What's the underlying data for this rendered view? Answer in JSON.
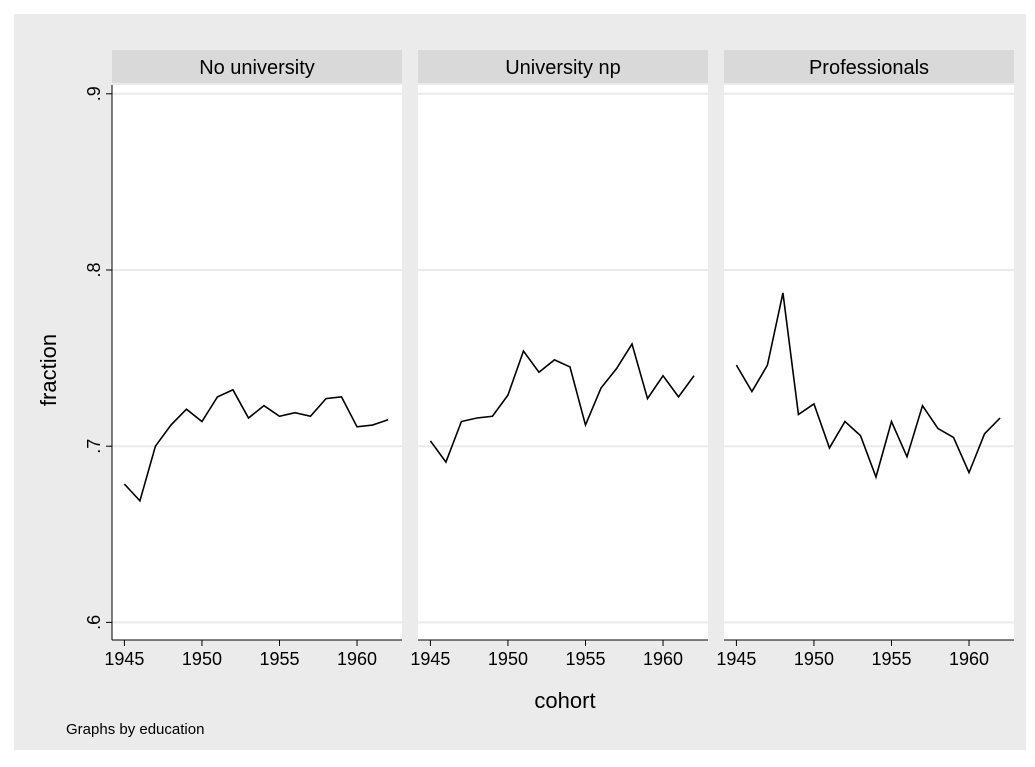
{
  "chart_data": {
    "type": "line",
    "xlabel": "cohort",
    "ylabel": "fraction",
    "note": "Graphs by education",
    "x": [
      1945,
      1946,
      1947,
      1948,
      1949,
      1950,
      1951,
      1952,
      1953,
      1954,
      1955,
      1956,
      1957,
      1958,
      1959,
      1960,
      1961,
      1962
    ],
    "xlim": [
      1944.2,
      1962.9
    ],
    "xticks": [
      1945,
      1950,
      1955,
      1960
    ],
    "ylim": [
      0.59,
      0.905
    ],
    "yticks": [
      {
        "value": 0.6,
        "label": ".6"
      },
      {
        "value": 0.7,
        "label": ".7"
      },
      {
        "value": 0.8,
        "label": ".8"
      },
      {
        "value": 0.9,
        "label": ".9"
      }
    ],
    "grid": true,
    "series": [
      {
        "name": "No university",
        "color": "#000000",
        "values": [
          0.6785,
          0.669,
          0.7,
          0.712,
          0.721,
          0.714,
          0.728,
          0.732,
          0.716,
          0.723,
          0.717,
          0.719,
          0.717,
          0.727,
          0.728,
          0.711,
          0.712,
          0.715
        ]
      },
      {
        "name": "University np",
        "color": "#000000",
        "values": [
          0.703,
          0.691,
          0.714,
          0.716,
          0.717,
          0.729,
          0.754,
          0.742,
          0.749,
          0.745,
          0.712,
          0.733,
          0.744,
          0.758,
          0.727,
          0.74,
          0.728,
          0.74
        ]
      },
      {
        "name": "Professionals",
        "color": "#000000",
        "values": [
          0.746,
          0.731,
          0.746,
          0.787,
          0.718,
          0.724,
          0.699,
          0.714,
          0.706,
          0.6825,
          0.714,
          0.694,
          0.723,
          0.71,
          0.705,
          0.685,
          0.707,
          0.716
        ]
      }
    ]
  }
}
